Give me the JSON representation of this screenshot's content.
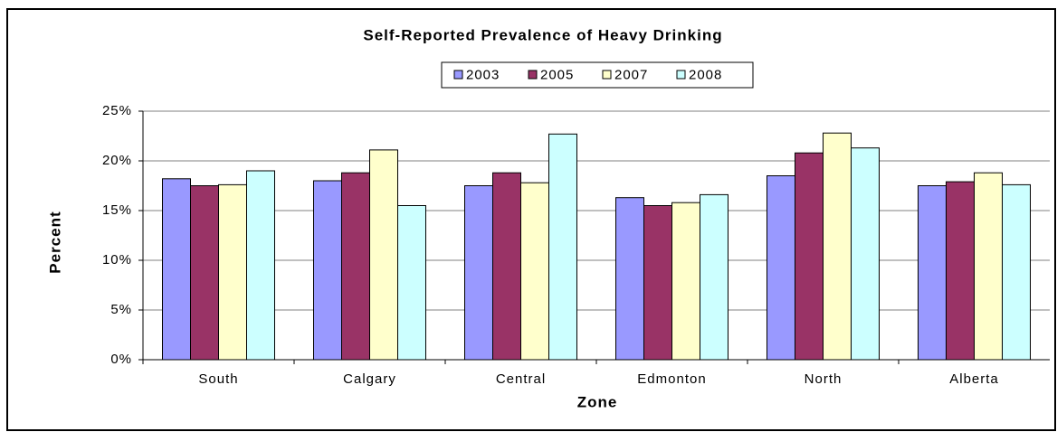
{
  "chart_data": {
    "type": "bar",
    "title": "Self-Reported Prevalence of Heavy Drinking",
    "xlabel": "Zone",
    "ylabel": "Percent",
    "categories": [
      "South",
      "Calgary",
      "Central",
      "Edmonton",
      "North",
      "Alberta"
    ],
    "series": [
      {
        "name": "2003",
        "color": "#9999ff",
        "values": [
          18.2,
          18.0,
          17.5,
          16.3,
          18.5,
          17.5
        ]
      },
      {
        "name": "2005",
        "color": "#993366",
        "values": [
          17.5,
          18.8,
          18.8,
          15.5,
          20.8,
          17.9
        ]
      },
      {
        "name": "2007",
        "color": "#ffffcc",
        "values": [
          17.6,
          21.1,
          17.8,
          15.8,
          22.8,
          18.8
        ]
      },
      {
        "name": "2008",
        "color": "#ccffff",
        "values": [
          19.0,
          15.5,
          22.7,
          16.6,
          21.3,
          17.6
        ]
      }
    ],
    "ylim": [
      0,
      25
    ],
    "yticks": [
      {
        "value": 0,
        "label": "0%"
      },
      {
        "value": 5,
        "label": "5%"
      },
      {
        "value": 10,
        "label": "10%"
      },
      {
        "value": 15,
        "label": "15%"
      },
      {
        "value": 20,
        "label": "20%"
      },
      {
        "value": 25,
        "label": "25%"
      }
    ],
    "grid": true,
    "legend": "top"
  }
}
